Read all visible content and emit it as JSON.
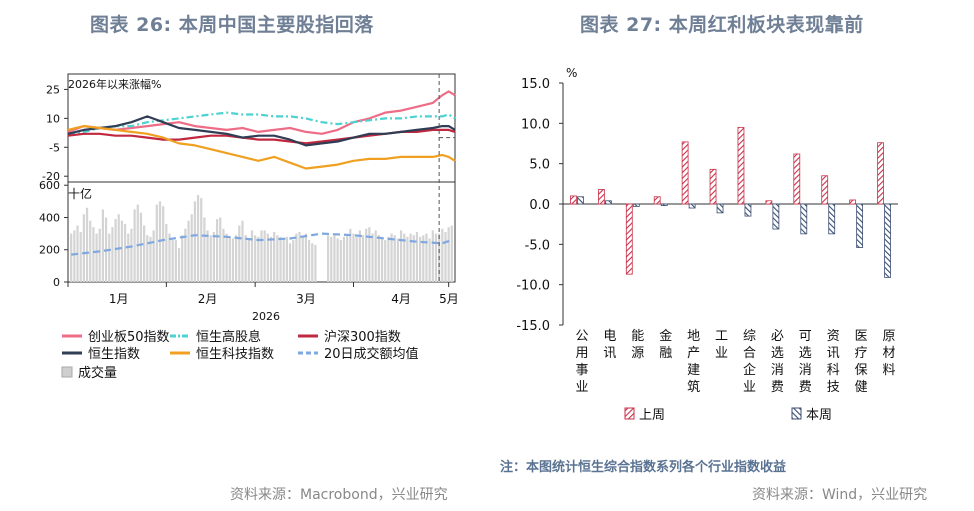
{
  "left": {
    "title": "图表 26: 本周中国主要股指回落",
    "source": "资料来源：Macrobond，兴业研究",
    "top_panel_label": "2026年以来涨幅%",
    "bottom_panel_label": "十亿",
    "year_label": "2026",
    "x_month_labels": [
      "1月",
      "2月",
      "3月",
      "4月",
      "5月"
    ],
    "legend": [
      {
        "label": "创业板50指数",
        "color": "#ee6c86",
        "style": "solid"
      },
      {
        "label": "恒生高股息",
        "color": "#4ed1d1",
        "style": "dashdot"
      },
      {
        "label": "沪深300指数",
        "color": "#c0283f",
        "style": "solid"
      },
      {
        "label": "恒生指数",
        "color": "#2f3d55",
        "style": "solid"
      },
      {
        "label": "恒生科技指数",
        "color": "#f0a020",
        "style": "solid"
      },
      {
        "label": "20日成交额均值",
        "color": "#7fa8e0",
        "style": "dashed"
      },
      {
        "label": "成交量",
        "color": "#cfcfcf",
        "style": "bar"
      }
    ]
  },
  "right": {
    "title": "图表 27: 本周红利板块表现靠前",
    "source": "资料来源：Wind，兴业研究",
    "note": "注：本图统计恒生综合指数系列各个行业指数收益",
    "unit_label": "%",
    "legend": [
      {
        "label": "上周",
        "color": "#c8324a"
      },
      {
        "label": "本周",
        "color": "#3c4f72"
      }
    ]
  },
  "chart_data": [
    {
      "type": "line",
      "title": "图表 26: 本周中国主要股指回落",
      "ylabel": "2026年以来涨幅%",
      "ylim": [
        -23,
        33
      ],
      "yticks": [
        25,
        10,
        -5,
        -20
      ],
      "x_range_days": [
        0,
        122
      ],
      "x_month_labels": [
        "1月",
        "2月",
        "3月",
        "4月",
        "5月"
      ],
      "x_month_positions_days": [
        31,
        59,
        90,
        120,
        150
      ],
      "x_unit": "days since 2025-12-01",
      "vertical_marker_day": 117,
      "series": [
        {
          "name": "创业板50指数",
          "color": "#ee6c86",
          "x": [
            0,
            5,
            10,
            15,
            20,
            25,
            30,
            35,
            40,
            45,
            50,
            55,
            60,
            65,
            70,
            75,
            80,
            85,
            90,
            95,
            100,
            105,
            110,
            115,
            118,
            120,
            122
          ],
          "y": [
            3,
            6,
            5,
            4,
            5,
            6,
            7,
            8,
            6,
            5,
            4,
            5,
            3,
            4,
            5,
            3,
            2,
            4,
            8,
            10,
            13,
            14,
            16,
            18,
            22,
            24,
            22
          ]
        },
        {
          "name": "恒生高股息",
          "color": "#4ed1d1",
          "x": [
            0,
            5,
            10,
            15,
            20,
            25,
            30,
            35,
            40,
            45,
            50,
            55,
            60,
            65,
            70,
            75,
            80,
            85,
            90,
            95,
            100,
            105,
            110,
            115,
            118,
            120,
            122
          ],
          "y": [
            2,
            3,
            5,
            6,
            6,
            8,
            9,
            10,
            11,
            12,
            13,
            12,
            12,
            11,
            11,
            10,
            8,
            7,
            8,
            9,
            10,
            10,
            11,
            11,
            11,
            12,
            10
          ]
        },
        {
          "name": "沪深300指数",
          "color": "#c0283f",
          "x": [
            0,
            5,
            10,
            15,
            20,
            25,
            30,
            35,
            40,
            45,
            50,
            55,
            60,
            65,
            70,
            75,
            80,
            85,
            90,
            95,
            100,
            105,
            110,
            115,
            118,
            120,
            122
          ],
          "y": [
            1,
            2,
            2,
            1,
            1,
            0,
            -1,
            -1,
            0,
            1,
            1,
            0,
            -1,
            -1,
            -2,
            -3,
            -2,
            -1,
            0,
            1,
            2,
            3,
            3,
            4,
            4,
            4,
            3
          ]
        },
        {
          "name": "恒生指数",
          "color": "#2f3d55",
          "x": [
            0,
            5,
            10,
            15,
            20,
            25,
            30,
            35,
            40,
            45,
            50,
            55,
            60,
            65,
            70,
            75,
            80,
            85,
            90,
            95,
            100,
            105,
            110,
            115,
            118,
            120,
            122
          ],
          "y": [
            2,
            4,
            5,
            6,
            8,
            11,
            8,
            5,
            4,
            3,
            2,
            0,
            1,
            1,
            -1,
            -4,
            -3,
            -2,
            0,
            2,
            2,
            3,
            4,
            5,
            6,
            6,
            4
          ]
        },
        {
          "name": "恒生科技指数",
          "color": "#f0a020",
          "x": [
            0,
            5,
            10,
            15,
            20,
            25,
            30,
            35,
            40,
            45,
            50,
            55,
            60,
            65,
            70,
            75,
            80,
            85,
            90,
            95,
            100,
            105,
            110,
            115,
            118,
            120,
            122
          ],
          "y": [
            4,
            6,
            5,
            4,
            3,
            2,
            0,
            -3,
            -4,
            -6,
            -8,
            -10,
            -12,
            -10,
            -13,
            -16,
            -15,
            -14,
            -12,
            -11,
            -11,
            -10,
            -10,
            -10,
            -9,
            -10,
            -12
          ]
        }
      ]
    },
    {
      "type": "bar",
      "ylabel": "十亿",
      "ylim": [
        0,
        620
      ],
      "yticks": [
        0,
        200,
        400,
        600
      ],
      "x_range_days": [
        0,
        122
      ],
      "x_unit": "days since 2025-12-01",
      "bars_name": "成交量",
      "bars_color": "#d4d4d4",
      "bar_x": [
        1,
        2,
        3,
        4,
        5,
        6,
        7,
        8,
        9,
        10,
        11,
        12,
        13,
        14,
        15,
        16,
        17,
        18,
        19,
        20,
        21,
        22,
        23,
        24,
        25,
        26,
        27,
        28,
        29,
        30,
        31,
        32,
        33,
        34,
        35,
        36,
        37,
        38,
        39,
        40,
        41,
        42,
        43,
        44,
        45,
        46,
        47,
        48,
        49,
        50,
        51,
        52,
        53,
        54,
        55,
        56,
        57,
        58,
        59,
        60,
        61,
        62,
        63,
        64,
        65,
        66,
        67,
        68,
        69,
        70,
        71,
        72,
        73,
        74,
        75,
        76,
        77,
        78,
        82,
        83,
        84,
        85,
        86,
        87,
        88,
        89,
        90,
        91,
        92,
        93,
        94,
        95,
        96,
        97,
        98,
        99,
        100,
        101,
        102,
        103,
        104,
        105,
        106,
        107,
        108,
        109,
        110,
        111,
        112,
        113,
        114,
        115,
        116,
        117,
        118,
        119,
        120,
        121
      ],
      "bar_values": [
        300,
        320,
        350,
        310,
        420,
        460,
        380,
        340,
        300,
        330,
        450,
        400,
        300,
        340,
        390,
        420,
        380,
        360,
        300,
        330,
        450,
        480,
        430,
        350,
        290,
        280,
        320,
        480,
        500,
        470,
        360,
        300,
        260,
        260,
        210,
        290,
        330,
        380,
        420,
        500,
        540,
        520,
        400,
        320,
        290,
        310,
        390,
        400,
        330,
        300,
        280,
        270,
        290,
        350,
        380,
        290,
        260,
        320,
        290,
        280,
        320,
        320,
        300,
        280,
        310,
        290,
        280,
        260,
        280,
        240,
        260,
        300,
        310,
        280,
        300,
        260,
        240,
        230,
        290,
        280,
        300,
        270,
        260,
        280,
        290,
        330,
        300,
        280,
        320,
        290,
        330,
        340,
        300,
        320,
        290,
        280,
        260,
        280,
        300,
        290,
        270,
        320,
        300,
        280,
        300,
        290,
        310,
        280,
        290,
        300,
        270,
        320,
        300,
        300,
        330,
        310,
        340,
        350
      ],
      "line_name": "20日成交额均值",
      "line_color": "#7fa8e0",
      "line_x": [
        1,
        10,
        20,
        30,
        40,
        50,
        60,
        70,
        80,
        90,
        100,
        110,
        118,
        121
      ],
      "line_y": [
        170,
        190,
        220,
        260,
        290,
        280,
        260,
        270,
        300,
        290,
        270,
        250,
        240,
        260
      ]
    },
    {
      "type": "bar",
      "title": "图表 27: 本周红利板块表现靠前",
      "ylabel": "%",
      "ylim": [
        -15.0,
        15.0
      ],
      "yticks": [
        15.0,
        10.0,
        5.0,
        0.0,
        -5.0,
        -10.0,
        -15.0
      ],
      "categories": [
        "公用事业",
        "电讯",
        "能源",
        "金融",
        "地产建筑",
        "工业",
        "综合企业",
        "必选消费",
        "可选消费",
        "资讯科技",
        "医疗保健",
        "原材料"
      ],
      "series": [
        {
          "name": "上周",
          "values": [
            1.0,
            1.8,
            -8.7,
            0.9,
            7.7,
            4.3,
            9.5,
            0.4,
            6.2,
            3.5,
            0.5,
            7.6
          ]
        },
        {
          "name": "本周",
          "values": [
            0.9,
            0.4,
            -0.3,
            -0.2,
            -0.5,
            -1.1,
            -1.5,
            -3.1,
            -3.7,
            -3.7,
            -5.4,
            -9.1
          ]
        }
      ]
    }
  ]
}
